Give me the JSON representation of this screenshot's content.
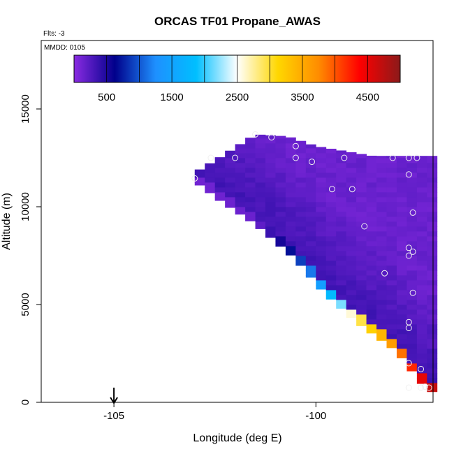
{
  "chart_data": {
    "type": "heatmap",
    "title": "ORCAS TF01 Propane_AWAS",
    "flts_label": "Flts: -3",
    "mmdd_label": "MMDD: 0105",
    "xlabel": "Longitude (deg E)",
    "ylabel": "Altitude (m)",
    "xlim": [
      -106.8,
      -97.1
    ],
    "ylim": [
      0,
      18500
    ],
    "xticks": [
      -105,
      -100
    ],
    "xtick_labels": [
      "-105",
      "-100"
    ],
    "yticks": [
      0,
      5000,
      10000,
      15000
    ],
    "ytick_labels": [
      "0",
      "5000",
      "10000",
      "15000"
    ],
    "colorbar": {
      "min": 0,
      "max": 5000,
      "ticks": [
        500,
        1500,
        2500,
        3500,
        4500
      ],
      "tick_labels": [
        "500",
        "1500",
        "2500",
        "3500",
        "4500"
      ],
      "stops": [
        "#8a2be2",
        "#00008b",
        "#1e90ff",
        "#00bfff",
        "#ffffff",
        "#ffd700",
        "#ff8c00",
        "#ff0000",
        "#8b1a1a"
      ]
    },
    "field": {
      "lon_step": 0.25,
      "alt_step": 250,
      "top_edge": [
        [
          -103.0,
          11750
        ],
        [
          -102.4,
          12500
        ],
        [
          -101.5,
          13700
        ],
        [
          -100.7,
          13600
        ],
        [
          -100.0,
          13100
        ],
        [
          -98.6,
          12600
        ],
        [
          -97.1,
          12600
        ]
      ],
      "bottom_edge": [
        [
          -103.0,
          11300
        ],
        [
          -102.3,
          10200
        ],
        [
          -101.5,
          9100
        ],
        [
          -100.5,
          7300
        ],
        [
          -99.8,
          5600
        ],
        [
          -99.0,
          4100
        ],
        [
          -98.0,
          2600
        ],
        [
          -97.4,
          1000
        ],
        [
          -97.1,
          500
        ]
      ],
      "background_value": 350,
      "interior_value": 150,
      "edge_band": [
        [
          12000,
          100
        ],
        [
          9000,
          150
        ],
        [
          7500,
          700
        ],
        [
          6000,
          1300
        ],
        [
          5000,
          2000
        ],
        [
          4000,
          2900
        ],
        [
          3000,
          3500
        ],
        [
          2000,
          4000
        ],
        [
          1000,
          4500
        ],
        [
          500,
          4700
        ]
      ]
    },
    "flight_track": [
      [
        -101.5,
        13700
      ],
      [
        -101.1,
        13550
      ],
      [
        -100.5,
        13100
      ],
      [
        -100.5,
        12500
      ],
      [
        -100.1,
        12300
      ],
      [
        -99.3,
        12500
      ],
      [
        -98.1,
        12500
      ],
      [
        -97.7,
        12500
      ],
      [
        -97.5,
        12500
      ],
      [
        -102.0,
        12500
      ],
      [
        -102.6,
        12500
      ],
      [
        -103.0,
        11450
      ],
      [
        -97.7,
        11650
      ],
      [
        -99.6,
        10900
      ],
      [
        -99.1,
        10900
      ],
      [
        -97.6,
        9700
      ],
      [
        -98.8,
        9000
      ],
      [
        -97.7,
        7900
      ],
      [
        -97.6,
        7700
      ],
      [
        -97.7,
        7500
      ],
      [
        -98.3,
        6600
      ],
      [
        -97.6,
        5600
      ],
      [
        -97.7,
        4100
      ],
      [
        -97.7,
        3800
      ],
      [
        -97.7,
        2000
      ],
      [
        -97.4,
        1700
      ],
      [
        -97.7,
        750
      ],
      [
        -97.4,
        750
      ],
      [
        -97.2,
        750
      ],
      [
        -97.3,
        800
      ]
    ],
    "marker": {
      "lon": -105
    }
  }
}
